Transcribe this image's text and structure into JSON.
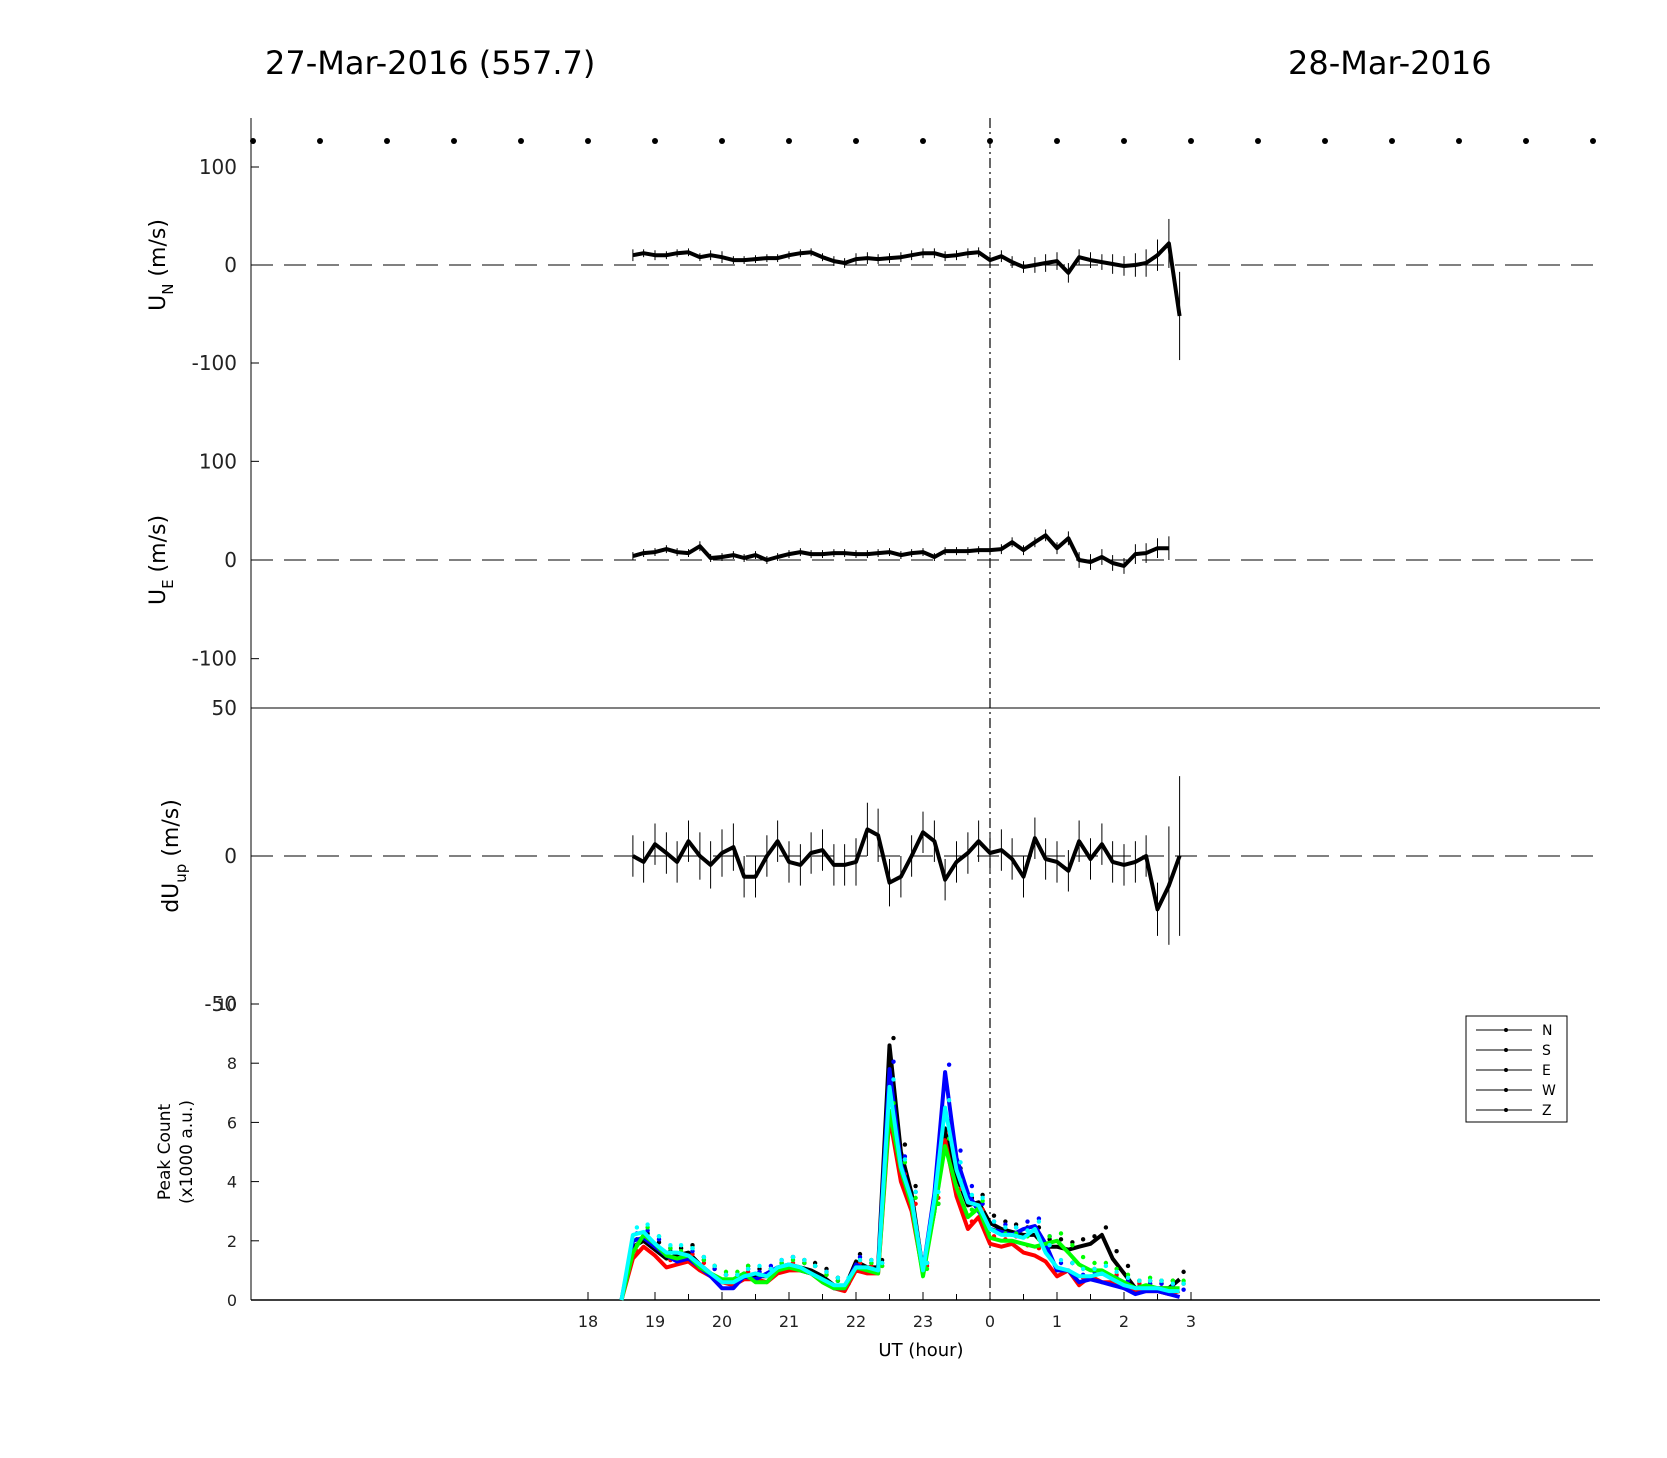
{
  "figure": {
    "title_left": "27-Mar-2016 (557.7)",
    "title_right": "28-Mar-2016",
    "xlabel": "UT (hour)"
  },
  "chart_data": [
    {
      "type": "line",
      "name": "UN",
      "ylabel_main": "U",
      "ylabel_sub": "N",
      "ylabel_unit": "(m/s)",
      "ylim": [
        -150,
        150
      ],
      "yticks": [
        100,
        0,
        -100
      ],
      "x": [
        18.67,
        18.83,
        19,
        19.17,
        19.33,
        19.5,
        19.67,
        19.83,
        20,
        20.17,
        20.33,
        20.5,
        20.67,
        20.83,
        21,
        21.17,
        21.33,
        21.5,
        21.67,
        21.83,
        22,
        22.17,
        22.33,
        22.5,
        22.67,
        22.83,
        23,
        23.17,
        23.33,
        23.5,
        23.67,
        23.83,
        24,
        24.17,
        24.33,
        24.5,
        24.67,
        24.83,
        25,
        25.17,
        25.33,
        25.5,
        25.67,
        25.83,
        26,
        26.17,
        26.33,
        26.5,
        26.67,
        26.83
      ],
      "y": [
        10,
        12,
        10,
        10,
        12,
        13,
        8,
        10,
        8,
        5,
        5,
        6,
        7,
        7,
        10,
        12,
        13,
        8,
        4,
        2,
        6,
        7,
        6,
        7,
        8,
        10,
        12,
        12,
        9,
        10,
        12,
        13,
        5,
        9,
        3,
        -2,
        0,
        2,
        4,
        -8,
        8,
        5,
        3,
        1,
        -1,
        0,
        2,
        10,
        22,
        -52
      ],
      "err": [
        6,
        4,
        5,
        4,
        4,
        4,
        4,
        5,
        6,
        4,
        4,
        4,
        4,
        4,
        4,
        4,
        4,
        4,
        5,
        5,
        6,
        6,
        5,
        5,
        5,
        5,
        5,
        5,
        5,
        5,
        5,
        5,
        6,
        6,
        6,
        6,
        8,
        9,
        9,
        10,
        8,
        8,
        8,
        10,
        10,
        12,
        14,
        16,
        25,
        45
      ],
      "zero_line": "dashed",
      "marker_row": true
    },
    {
      "type": "line",
      "name": "UE",
      "ylabel_main": "U",
      "ylabel_sub": "E",
      "ylabel_unit": "(m/s)",
      "ylim": [
        -150,
        150
      ],
      "yticks": [
        100,
        0,
        -100
      ],
      "x": [
        18.67,
        18.83,
        19,
        19.17,
        19.33,
        19.5,
        19.67,
        19.83,
        20,
        20.17,
        20.33,
        20.5,
        20.67,
        20.83,
        21,
        21.17,
        21.33,
        21.5,
        21.67,
        21.83,
        22,
        22.17,
        22.33,
        22.5,
        22.67,
        22.83,
        23,
        23.17,
        23.33,
        23.5,
        23.67,
        23.83,
        24,
        24.17,
        24.33,
        24.5,
        24.67,
        24.83,
        25,
        25.17,
        25.33,
        25.5,
        25.67,
        25.83,
        26,
        26.17,
        26.33,
        26.5,
        26.67
      ],
      "y": [
        4,
        7,
        8,
        11,
        8,
        7,
        14,
        2,
        3,
        5,
        2,
        5,
        0,
        3,
        6,
        8,
        6,
        6,
        7,
        7,
        6,
        6,
        7,
        8,
        5,
        7,
        8,
        3,
        9,
        9,
        9,
        10,
        10,
        11,
        18,
        10,
        18,
        25,
        12,
        22,
        0,
        -2,
        3,
        -3,
        -6,
        6,
        7,
        12,
        12
      ],
      "err": [
        4,
        4,
        4,
        4,
        4,
        4,
        5,
        4,
        4,
        4,
        4,
        4,
        4,
        4,
        4,
        4,
        4,
        4,
        4,
        4,
        4,
        4,
        4,
        4,
        4,
        4,
        4,
        4,
        4,
        4,
        4,
        4,
        5,
        5,
        5,
        5,
        5,
        6,
        6,
        7,
        8,
        8,
        8,
        8,
        8,
        10,
        10,
        10,
        12
      ],
      "zero_line": "dashed"
    },
    {
      "type": "line",
      "name": "dUup",
      "ylabel_main": "dU",
      "ylabel_sub": "up",
      "ylabel_unit": "(m/s)",
      "ylim": [
        -50,
        50
      ],
      "yticks": [
        50,
        0,
        -50
      ],
      "x": [
        18.67,
        18.83,
        19,
        19.17,
        19.33,
        19.5,
        19.67,
        19.83,
        20,
        20.17,
        20.33,
        20.5,
        20.67,
        20.83,
        21,
        21.17,
        21.33,
        21.5,
        21.67,
        21.83,
        22,
        22.17,
        22.33,
        22.5,
        22.67,
        22.83,
        23,
        23.17,
        23.33,
        23.5,
        23.67,
        23.83,
        24,
        24.17,
        24.33,
        24.5,
        24.67,
        24.83,
        25,
        25.17,
        25.33,
        25.5,
        25.67,
        25.83,
        26,
        26.17,
        26.33,
        26.5,
        26.67,
        26.83
      ],
      "y": [
        0,
        -2,
        4,
        1,
        -2,
        5,
        0,
        -3,
        1,
        3,
        -7,
        -7,
        0,
        5,
        -2,
        -3,
        1,
        2,
        -3,
        -3,
        -2,
        9,
        7,
        -9,
        -7,
        0,
        8,
        5,
        -8,
        -2,
        1,
        5,
        1,
        2,
        -1,
        -7,
        6,
        -1,
        -2,
        -5,
        5,
        -1,
        4,
        -2,
        -3,
        -2,
        0,
        -18,
        -10,
        0
      ],
      "err": [
        7,
        7,
        7,
        7,
        7,
        7,
        8,
        8,
        8,
        8,
        7,
        7,
        7,
        7,
        7,
        7,
        7,
        7,
        7,
        7,
        8,
        9,
        9,
        8,
        7,
        7,
        7,
        7,
        7,
        7,
        7,
        7,
        7,
        7,
        7,
        7,
        7,
        7,
        7,
        7,
        7,
        7,
        7,
        7,
        7,
        7,
        7,
        9,
        20,
        27
      ],
      "zero_line": "dashed"
    },
    {
      "type": "line",
      "name": "PeakCount",
      "ylabel_line1": "Peak Count",
      "ylabel_line2": "(x1000 a.u.)",
      "ylim": [
        0,
        10
      ],
      "yticks": [
        0,
        2,
        4,
        6,
        8,
        10
      ],
      "xticks": [
        18,
        19,
        20,
        21,
        22,
        23,
        0,
        1,
        2,
        3
      ],
      "xtick_positions": [
        18,
        19,
        20,
        21,
        22,
        23,
        24,
        25,
        26,
        27
      ],
      "x": [
        18.5,
        18.67,
        18.83,
        19,
        19.17,
        19.33,
        19.5,
        19.67,
        19.83,
        20,
        20.17,
        20.33,
        20.5,
        20.67,
        20.83,
        21,
        21.17,
        21.33,
        21.5,
        21.67,
        21.83,
        22,
        22.17,
        22.33,
        22.5,
        22.67,
        22.83,
        23,
        23.17,
        23.33,
        23.5,
        23.67,
        23.83,
        24,
        24.17,
        24.33,
        24.5,
        24.67,
        24.83,
        25,
        25.17,
        25.33,
        25.5,
        25.67,
        25.83,
        26,
        26.17,
        26.33,
        26.5,
        26.67,
        26.83
      ],
      "legend": [
        "N",
        "S",
        "E",
        "W",
        "Z"
      ],
      "legend_position": "top-right",
      "series": [
        {
          "name": "N",
          "color": "#000000",
          "values": [
            0,
            1.8,
            2.0,
            1.7,
            1.4,
            1.5,
            1.6,
            1.2,
            0.9,
            0.6,
            0.6,
            0.9,
            0.8,
            0.8,
            1.0,
            1.2,
            1.1,
            1.0,
            0.8,
            0.5,
            0.4,
            1.3,
            1.1,
            1.1,
            8.6,
            5.0,
            3.6,
            1.0,
            3.0,
            5.8,
            4.2,
            3.2,
            3.3,
            2.6,
            2.4,
            2.3,
            2.2,
            2.2,
            1.8,
            1.8,
            1.7,
            1.8,
            1.9,
            2.2,
            1.4,
            0.9,
            0.4,
            0.4,
            0.4,
            0.4,
            0.7
          ]
        },
        {
          "name": "S",
          "color": "#ff0000",
          "values": [
            0,
            1.4,
            1.8,
            1.5,
            1.1,
            1.2,
            1.3,
            1.0,
            0.8,
            0.6,
            0.5,
            0.7,
            0.7,
            0.6,
            0.9,
            1.0,
            1.0,
            0.9,
            0.6,
            0.4,
            0.3,
            1.0,
            0.9,
            0.9,
            6.2,
            4.0,
            3.0,
            0.9,
            3.2,
            5.4,
            3.5,
            2.4,
            2.8,
            1.9,
            1.8,
            1.9,
            1.6,
            1.5,
            1.3,
            0.8,
            1.0,
            0.5,
            0.8,
            0.6,
            0.6,
            0.4,
            0.3,
            0.3,
            0.3,
            0.2,
            0.3
          ]
        },
        {
          "name": "E",
          "color": "#0000ff",
          "values": [
            0,
            2.0,
            2.1,
            1.8,
            1.5,
            1.3,
            1.4,
            1.1,
            0.8,
            0.4,
            0.4,
            0.8,
            0.7,
            0.9,
            1.1,
            1.2,
            1.0,
            0.9,
            0.7,
            0.4,
            0.4,
            1.2,
            1.0,
            1.0,
            7.8,
            4.6,
            3.4,
            1.0,
            3.6,
            7.7,
            4.8,
            3.6,
            3.0,
            2.4,
            2.3,
            2.2,
            2.4,
            2.5,
            1.9,
            1.0,
            1.0,
            0.6,
            0.7,
            0.6,
            0.5,
            0.4,
            0.2,
            0.3,
            0.3,
            0.2,
            0.1
          ]
        },
        {
          "name": "W",
          "color": "#00ff00",
          "values": [
            0,
            1.6,
            2.2,
            1.9,
            1.5,
            1.4,
            1.5,
            1.1,
            0.9,
            0.7,
            0.7,
            0.9,
            0.6,
            0.6,
            1.0,
            1.1,
            1.0,
            0.9,
            0.6,
            0.4,
            0.4,
            1.1,
            1.0,
            0.9,
            6.4,
            4.4,
            3.2,
            0.8,
            3.0,
            5.2,
            3.8,
            2.8,
            3.1,
            2.1,
            2.0,
            2.0,
            1.9,
            1.8,
            1.9,
            2.0,
            1.6,
            1.2,
            1.0,
            1.0,
            0.8,
            0.6,
            0.4,
            0.5,
            0.4,
            0.4,
            0.4
          ]
        },
        {
          "name": "Z",
          "color": "#00ffff",
          "values": [
            0,
            2.2,
            2.3,
            1.9,
            1.6,
            1.6,
            1.5,
            1.2,
            0.9,
            0.6,
            0.6,
            0.8,
            0.9,
            0.8,
            1.1,
            1.2,
            1.1,
            0.9,
            0.7,
            0.5,
            0.5,
            1.1,
            1.1,
            1.0,
            7.2,
            4.5,
            3.4,
            1.0,
            3.4,
            6.5,
            4.4,
            3.3,
            3.2,
            2.4,
            2.2,
            2.2,
            2.1,
            2.4,
            1.6,
            1.1,
            1.0,
            0.8,
            0.8,
            0.9,
            0.7,
            0.5,
            0.4,
            0.4,
            0.4,
            0.3,
            0.3
          ]
        }
      ]
    }
  ]
}
